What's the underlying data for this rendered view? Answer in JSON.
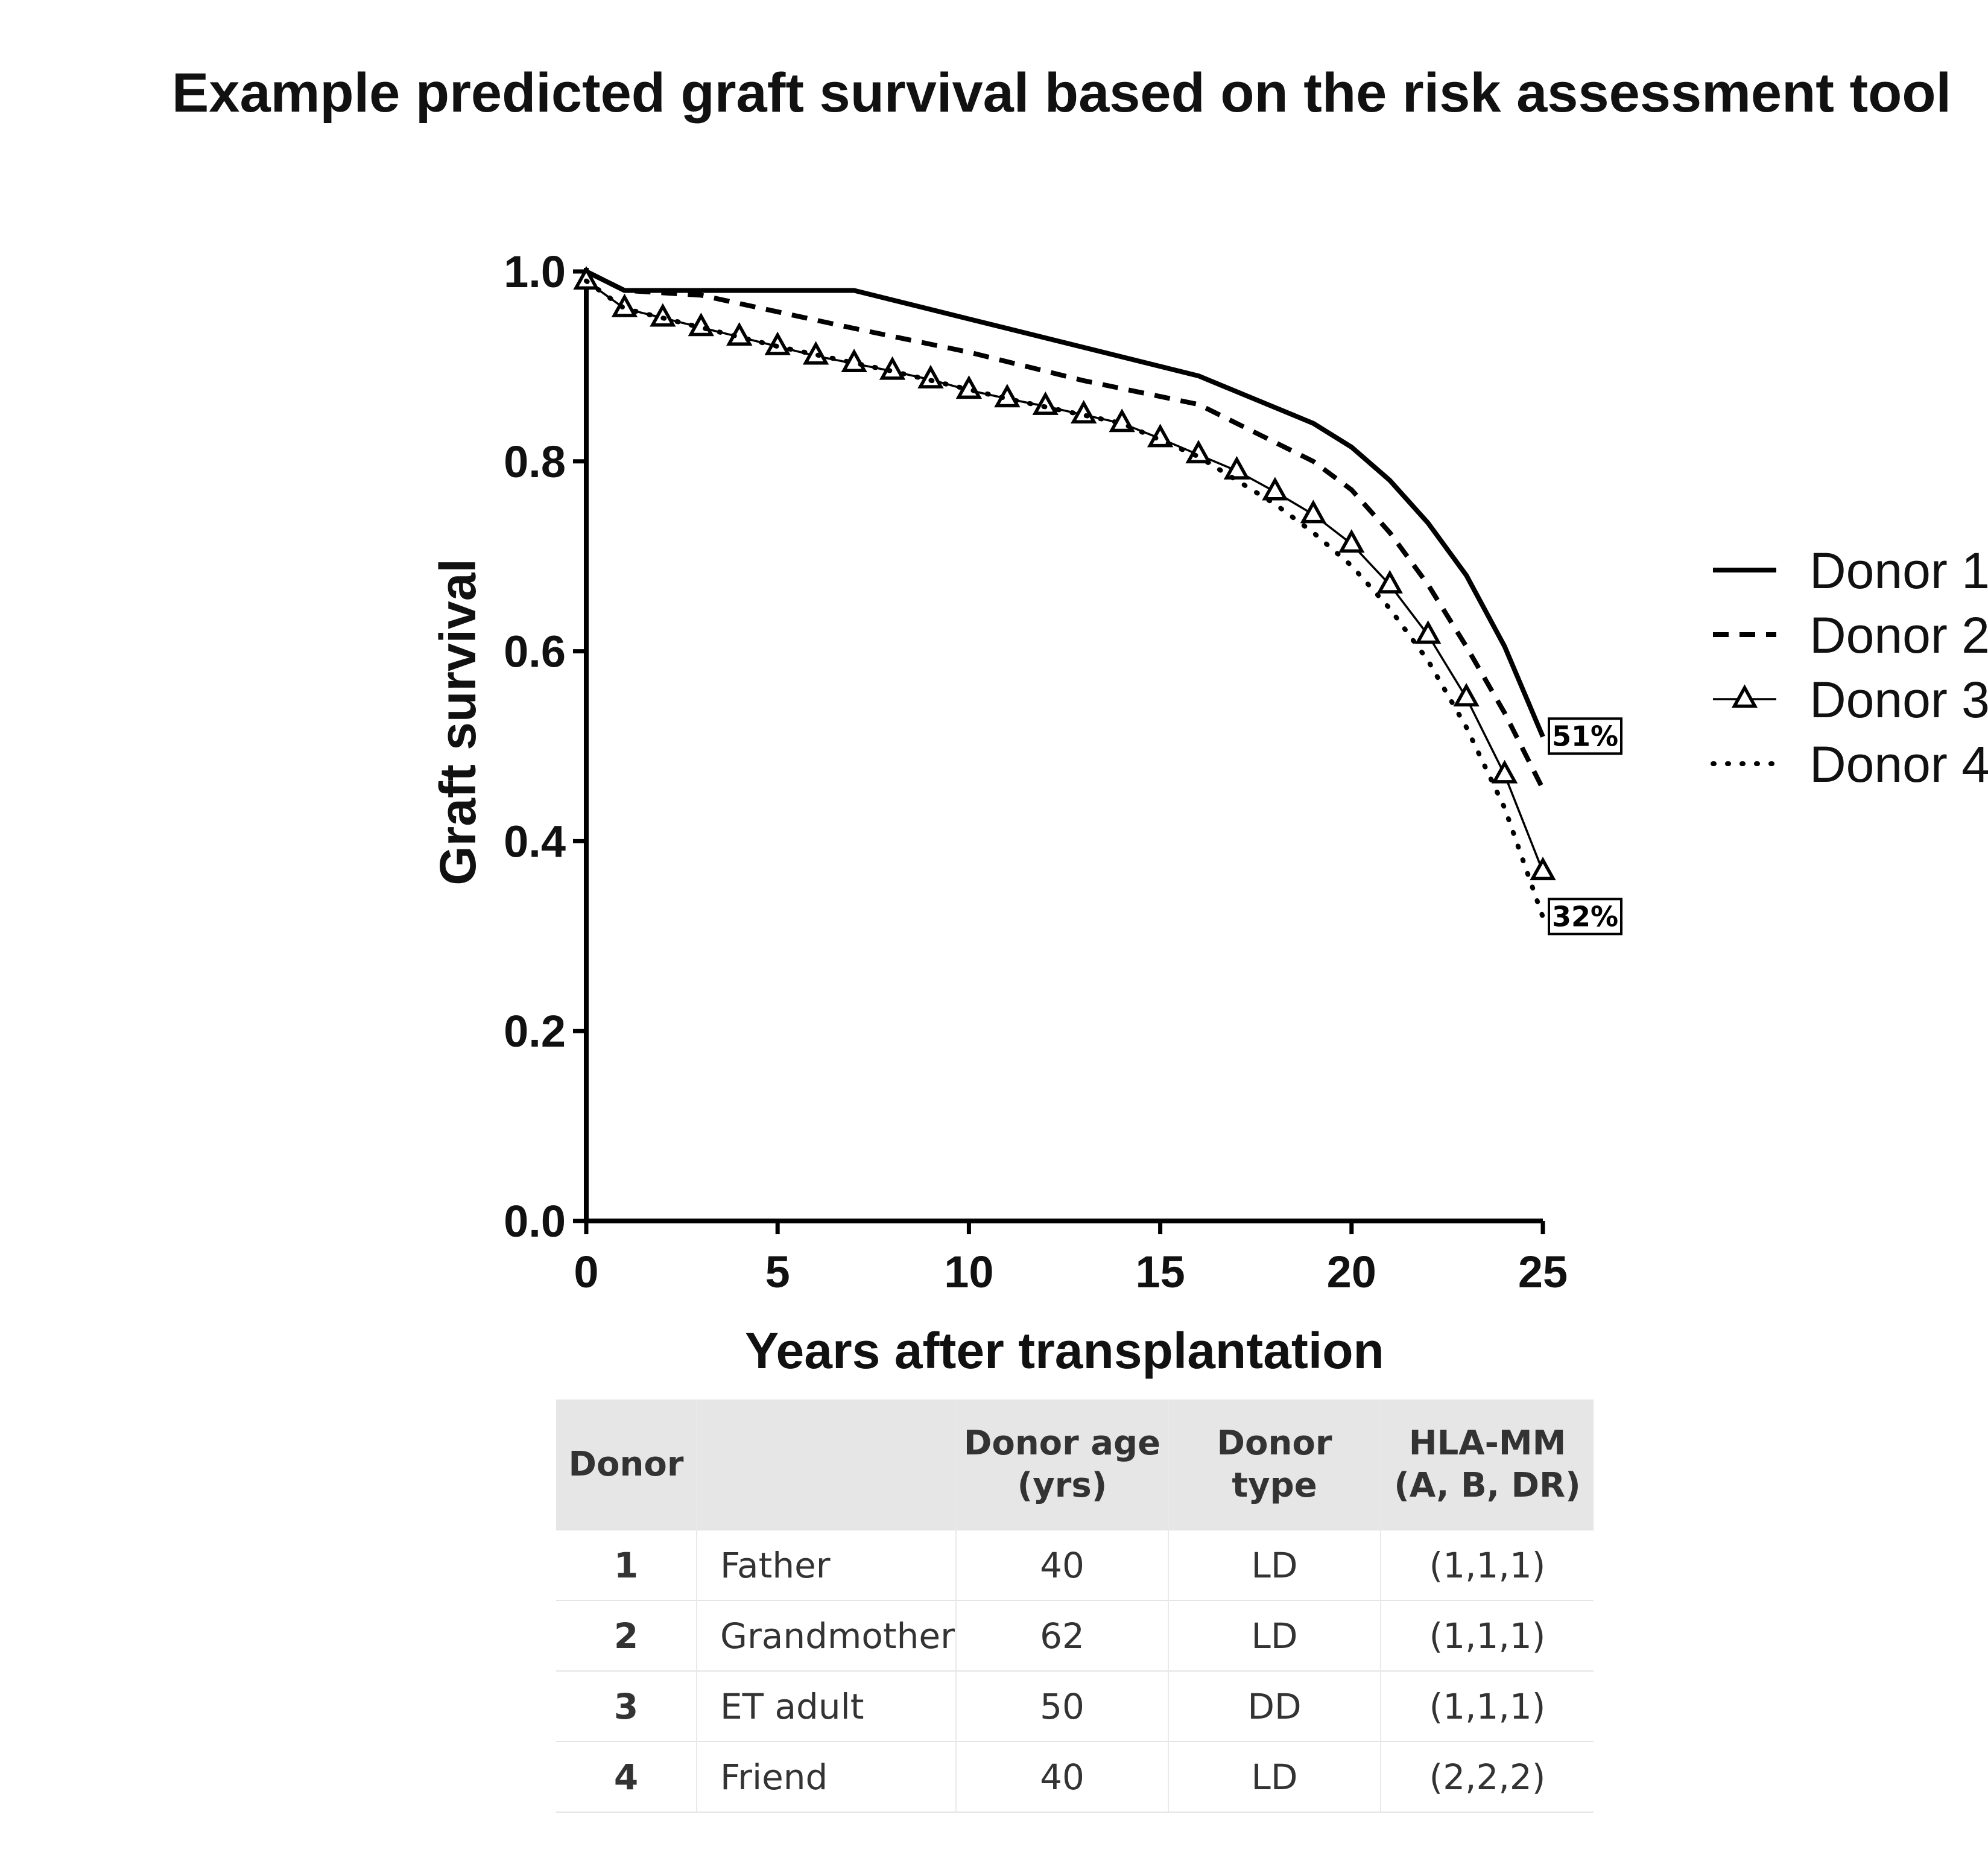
{
  "title": "Example predicted graft survival based on the risk assessment tool",
  "chart_data": {
    "type": "line",
    "title": "Example predicted graft survival based on the risk assessment tool",
    "xlabel": "Years after transplantation",
    "ylabel": "Graft survival",
    "xlim": [
      0,
      25
    ],
    "ylim": [
      0.0,
      1.0
    ],
    "xticks": [
      "0",
      "5",
      "10",
      "15",
      "20",
      "25"
    ],
    "yticks": [
      "0.0",
      "0.2",
      "0.4",
      "0.6",
      "0.8",
      "1.0"
    ],
    "grid": false,
    "legend_position": "right",
    "series": [
      {
        "name": "Donor 1",
        "style": "solid",
        "x": [
          0,
          1,
          3,
          7,
          10,
          13,
          16,
          19,
          20,
          21,
          22,
          23,
          24,
          25
        ],
        "y": [
          1.0,
          0.98,
          0.98,
          0.98,
          0.95,
          0.92,
          0.89,
          0.84,
          0.815,
          0.78,
          0.735,
          0.68,
          0.605,
          0.51
        ]
      },
      {
        "name": "Donor 2",
        "style": "dashed",
        "x": [
          0,
          1,
          3,
          7,
          10,
          13,
          16,
          19,
          20,
          21,
          22,
          23,
          24,
          25
        ],
        "y": [
          1.0,
          0.98,
          0.975,
          0.94,
          0.915,
          0.885,
          0.86,
          0.8,
          0.77,
          0.725,
          0.67,
          0.605,
          0.535,
          0.455
        ]
      },
      {
        "name": "Donor 3",
        "style": "solid-triangle",
        "x": [
          0,
          1,
          2,
          3,
          4,
          5,
          6,
          7,
          8,
          9,
          10,
          11,
          12,
          13,
          14,
          15,
          16,
          17,
          18,
          19,
          20,
          21,
          22,
          23,
          24,
          25
        ],
        "y": [
          0.99,
          0.961,
          0.951,
          0.941,
          0.931,
          0.921,
          0.911,
          0.903,
          0.895,
          0.886,
          0.875,
          0.866,
          0.858,
          0.849,
          0.84,
          0.824,
          0.807,
          0.79,
          0.768,
          0.744,
          0.713,
          0.67,
          0.617,
          0.551,
          0.47,
          0.368
        ]
      },
      {
        "name": "Donor 4",
        "style": "dotted",
        "x": [
          0,
          1,
          3,
          5,
          8,
          11,
          14,
          16,
          18,
          19,
          20,
          21,
          22,
          23,
          24,
          25
        ],
        "y": [
          0.99,
          0.961,
          0.941,
          0.921,
          0.895,
          0.866,
          0.84,
          0.805,
          0.755,
          0.725,
          0.69,
          0.645,
          0.59,
          0.52,
          0.435,
          0.32
        ]
      }
    ],
    "annotations": [
      {
        "text": "51%",
        "x": 25,
        "y": 0.51
      },
      {
        "text": "32%",
        "x": 25,
        "y": 0.32
      }
    ]
  },
  "table": {
    "headers": [
      "Donor",
      "",
      "Donor age (yrs)",
      "Donor type",
      "HLA-MM (A, B, DR)"
    ],
    "rows": [
      [
        "1",
        "Father",
        "40",
        "LD",
        "(1,1,1)"
      ],
      [
        "2",
        "Grandmother",
        "62",
        "LD",
        "(1,1,1)"
      ],
      [
        "3",
        "ET adult",
        "50",
        "DD",
        "(1,1,1)"
      ],
      [
        "4",
        "Friend",
        "40",
        "LD",
        "(2,2,2)"
      ]
    ]
  }
}
